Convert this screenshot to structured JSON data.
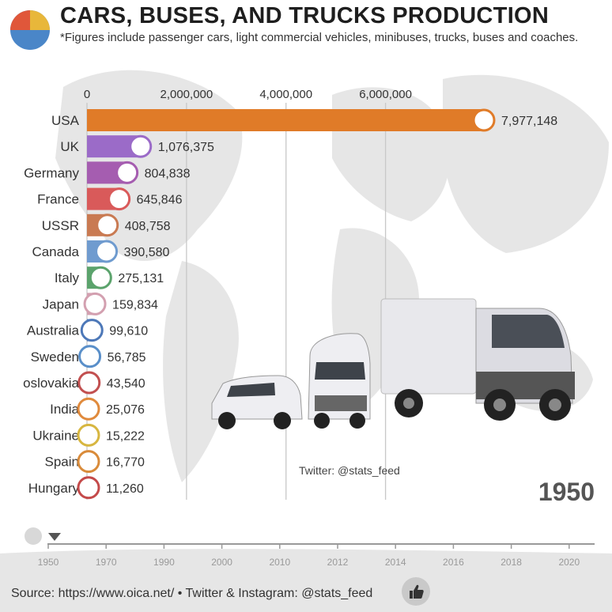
{
  "title": "CARS, BUSES, AND TRUCKS PRODUCTION",
  "subtitle": "*Figures include passenger cars, light commercial vehicles, minibuses, trucks, buses and coaches.",
  "year": "1950",
  "credit": "Twitter: @stats_feed",
  "source": "Source: https://www.oica.net/ • Twitter & Instagram: @stats_feed",
  "timeline": {
    "ticks": [
      "1950",
      "1970",
      "1990",
      "2000",
      "2010",
      "2012",
      "2014",
      "2016",
      "2018",
      "2020"
    ],
    "play_icon": "pause-icon",
    "current_marker_icon": "triangle-down-icon"
  },
  "chart_data": {
    "type": "bar",
    "orientation": "horizontal",
    "xlim": [
      0,
      7977148
    ],
    "x_ticks": [
      0,
      2000000,
      4000000,
      6000000
    ],
    "x_tick_labels": [
      "0",
      "2,000,000",
      "4,000,000",
      "6,000,000"
    ],
    "grid": true,
    "categories": [
      "USA",
      "UK",
      "Germany",
      "France",
      "USSR",
      "Canada",
      "Italy",
      "Japan",
      "Australia",
      "Sweden",
      "oslovakia",
      "India",
      "Ukraine",
      "Spain",
      "Hungary"
    ],
    "values": [
      7977148,
      1076375,
      804838,
      645846,
      408758,
      390580,
      275131,
      159834,
      99610,
      56785,
      43540,
      25076,
      15222,
      16770,
      11260
    ],
    "value_labels": [
      "7,977,148",
      "1,076,375",
      "804,838",
      "645,846",
      "408,758",
      "390,580",
      "275,131",
      "159,834",
      "99,610",
      "56,785",
      "43,540",
      "25,076",
      "15,222",
      "16,770",
      "11,260"
    ],
    "colors": [
      "#e07b28",
      "#9b6bc8",
      "#a55db0",
      "#d95a5a",
      "#c97a52",
      "#6f9bcf",
      "#5ba36c",
      "#d3a0b0",
      "#4d78b8",
      "#5a8fc9",
      "#c25050",
      "#e08a3c",
      "#d7b640",
      "#d98b3a",
      "#c44a4a"
    ],
    "flag_icons": [
      "usa-flag-icon",
      "uk-flag-icon",
      "germany-flag-icon",
      "france-flag-icon",
      "ussr-flag-icon",
      "canada-flag-icon",
      "italy-flag-icon",
      "japan-flag-icon",
      "australia-flag-icon",
      "sweden-flag-icon",
      "czechoslovakia-flag-icon",
      "india-flag-icon",
      "ukraine-flag-icon",
      "spain-flag-icon",
      "hungary-flag-icon"
    ]
  }
}
